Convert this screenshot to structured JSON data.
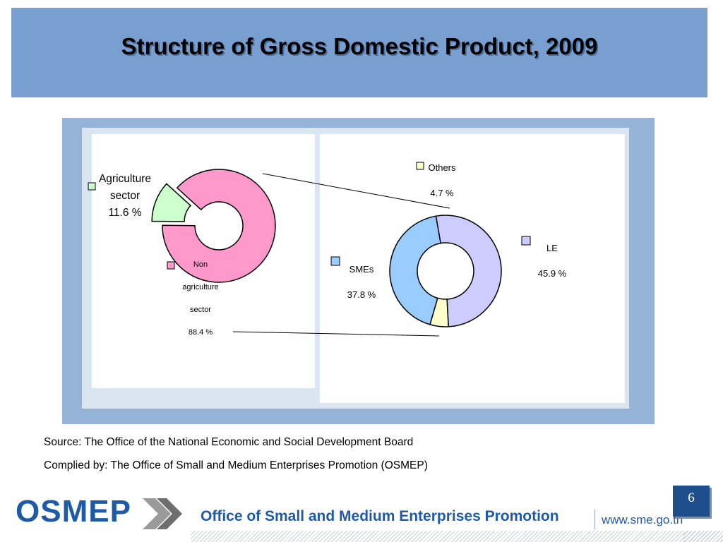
{
  "title": "Structure of Gross Domestic Product, 2009",
  "colors": {
    "agriculture": "#ccffcc",
    "non_agriculture": "#ff99cc",
    "smes": "#99ccff",
    "le": "#ccccff",
    "others": "#ffffcc",
    "header": "#789fd0",
    "brand": "#1f5aa6"
  },
  "chart_data": [
    {
      "type": "pie",
      "style": "donut-exploded",
      "slices": [
        {
          "label_lines": [
            "Agriculture",
            "sector"
          ],
          "value": 11.6,
          "value_text": "11.6 %"
        },
        {
          "label_lines": [
            "Non",
            "agriculture",
            "sector"
          ],
          "value": 88.4,
          "value_text": "88.4 %"
        }
      ]
    },
    {
      "type": "pie",
      "style": "donut",
      "slices": [
        {
          "label_lines": [
            "LE"
          ],
          "value": 45.9,
          "value_text": "45.9 %"
        },
        {
          "label_lines": [
            "SMEs"
          ],
          "value": 37.8,
          "value_text": "37.8 %"
        },
        {
          "label_lines": [
            "Others"
          ],
          "value": 4.7,
          "value_text": "4.7 %"
        }
      ]
    }
  ],
  "source": "Source: The Office of the National Economic and Social Development Board",
  "compiled_by": "Complied by: The Office of Small and Medium Enterprises Promotion (OSMEP)",
  "footer": {
    "logo": "OSMEP",
    "org_name": "Office of Small and Medium Enterprises Promotion",
    "url": "www.sme.go.th",
    "page_number": "6"
  }
}
